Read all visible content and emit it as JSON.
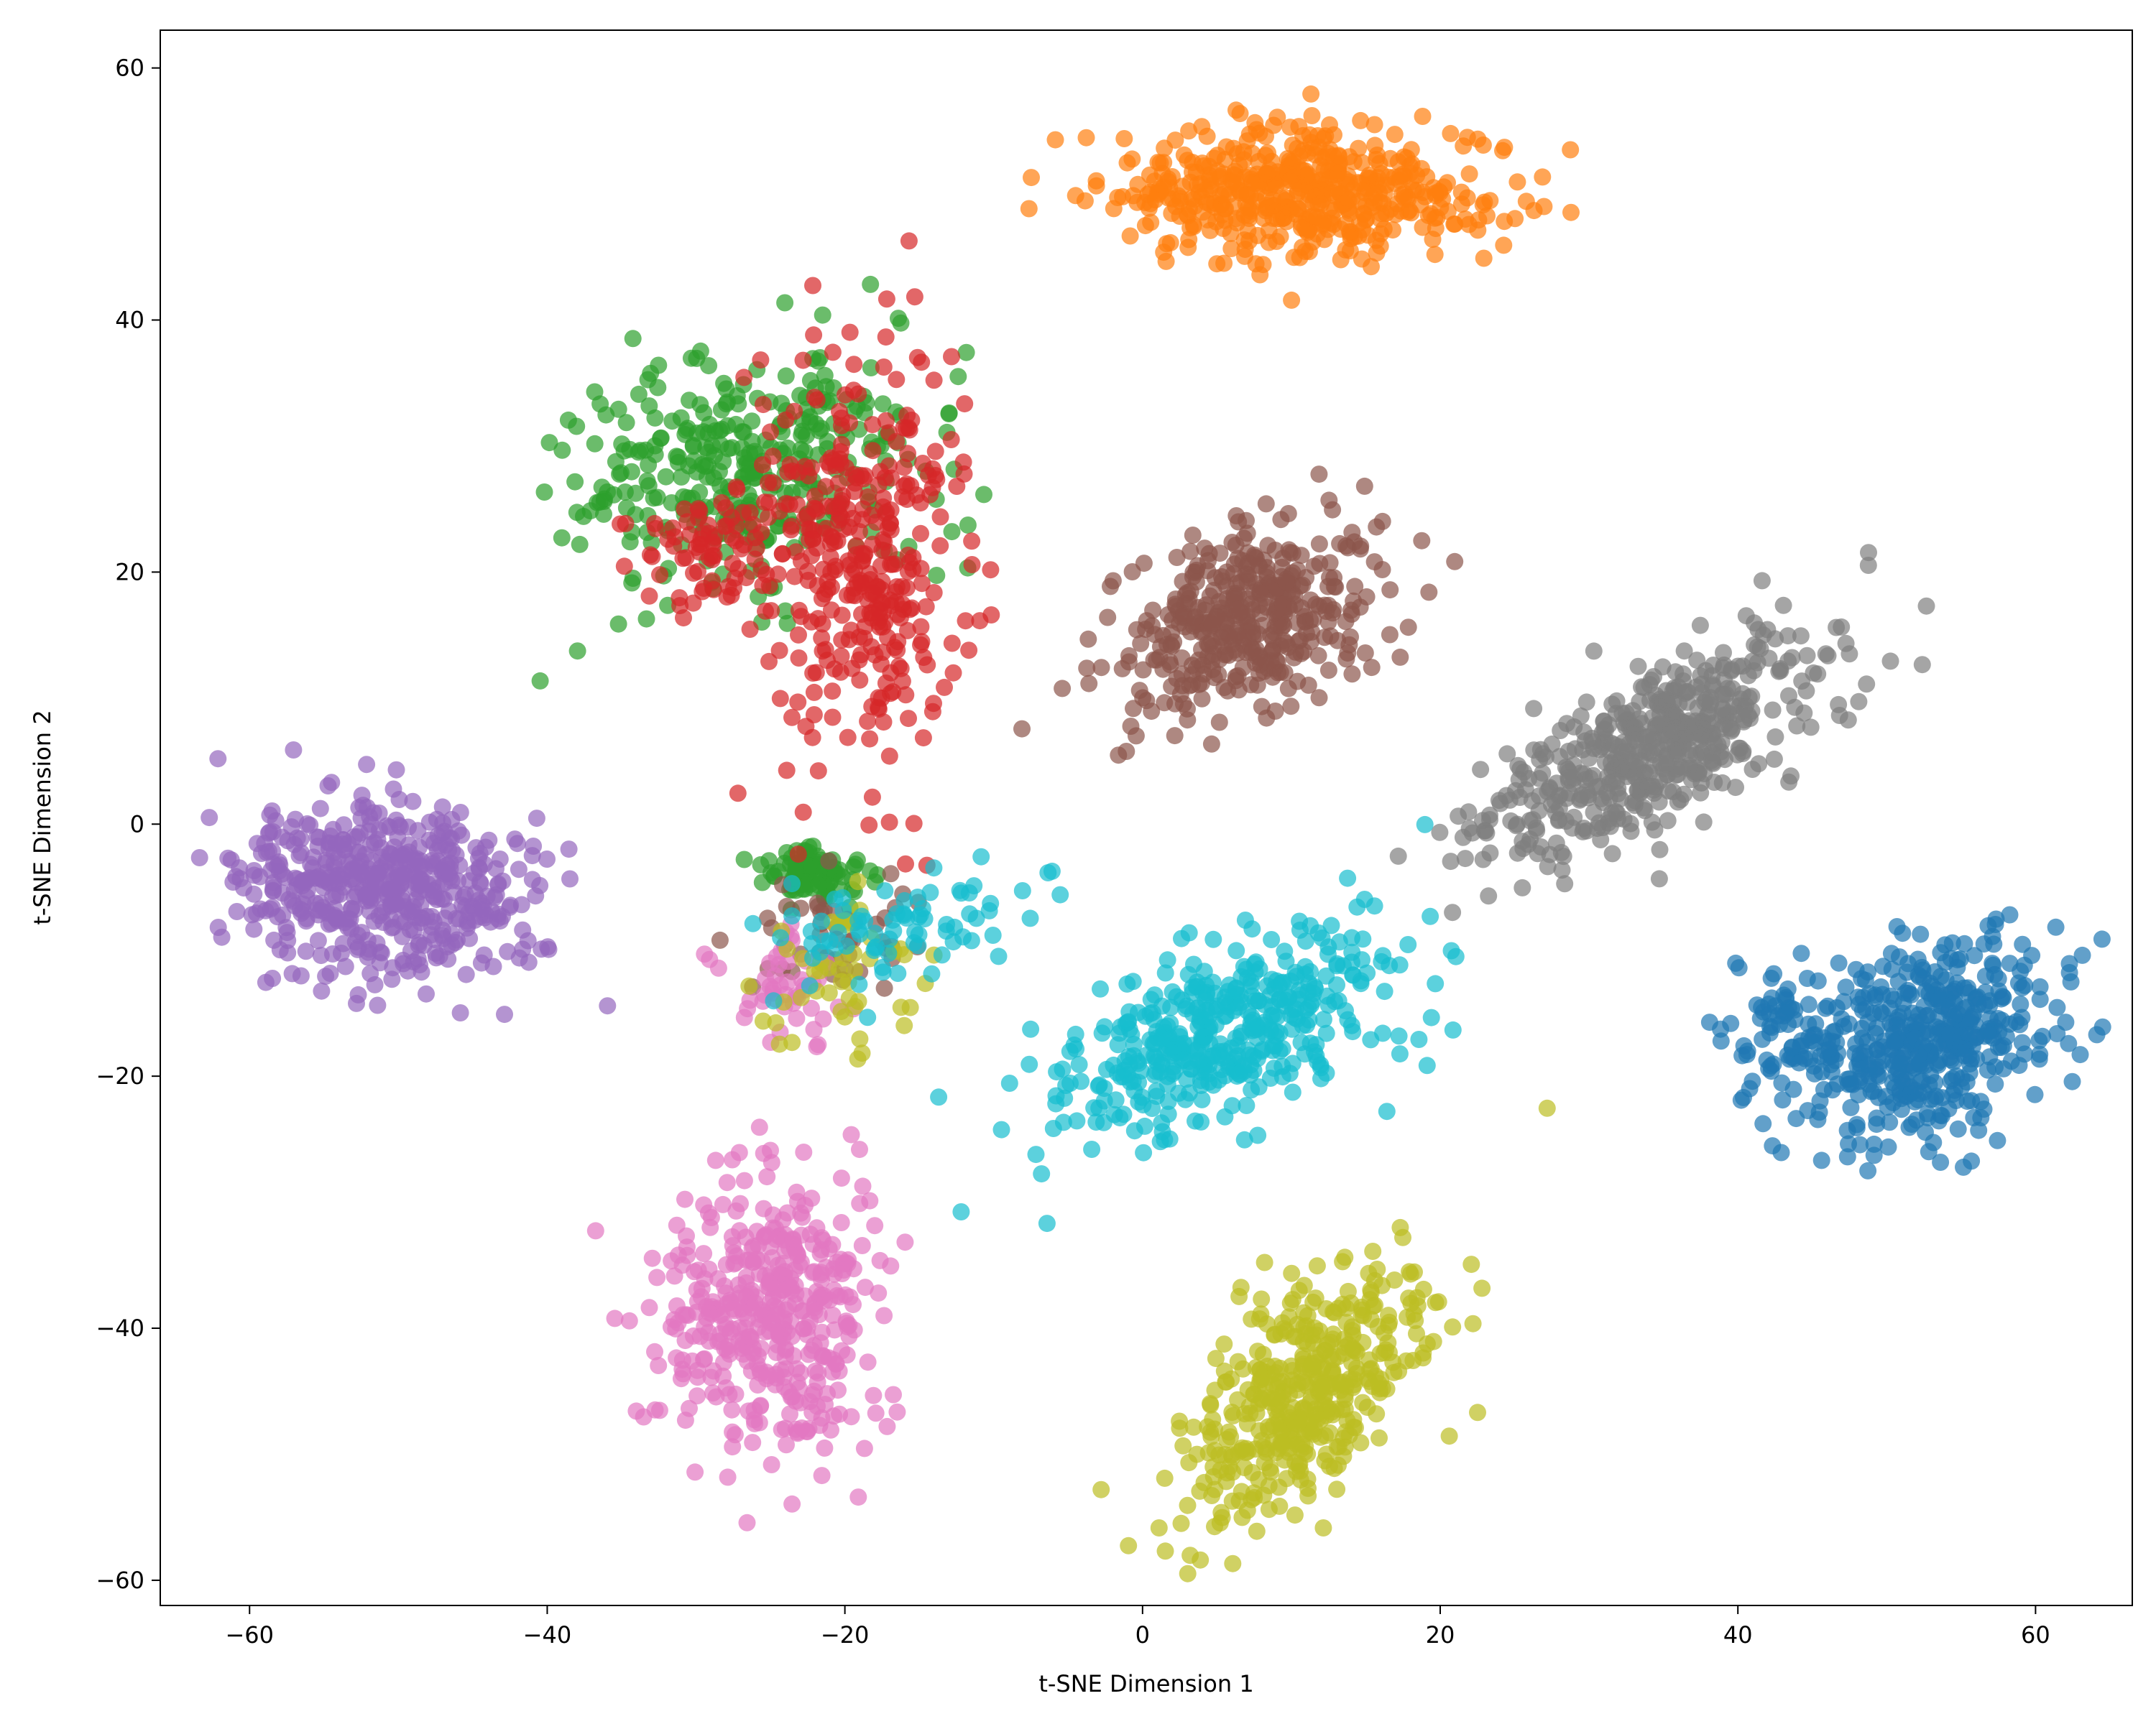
{
  "chart_data": {
    "type": "scatter",
    "title": "",
    "xlabel": "t-SNE Dimension 1",
    "ylabel": "t-SNE Dimension 2",
    "xlim": [
      -66,
      66.5
    ],
    "ylim": [
      -62,
      63
    ],
    "xticks": [
      -60,
      -40,
      -20,
      0,
      20,
      40,
      60
    ],
    "yticks": [
      -60,
      -40,
      -20,
      0,
      20,
      40,
      60
    ],
    "xtick_labels": [
      "−60",
      "−40",
      "−20",
      "0",
      "20",
      "40",
      "60"
    ],
    "ytick_labels": [
      "−60",
      "−40",
      "−20",
      "0",
      "20",
      "40",
      "60"
    ],
    "grid": false,
    "legend": "none",
    "point_alpha": 0.7,
    "seed": 7,
    "series": [
      {
        "color": "#1f77b4",
        "count": 520,
        "clusters": [
          {
            "center": [
              53,
              -17
            ],
            "spread": [
              4.5,
              3.5
            ],
            "angle": 30,
            "weight": 0.85
          },
          {
            "center": [
              43,
              -17
            ],
            "spread": [
              2.0,
              3.5
            ],
            "angle": 0,
            "weight": 0.15
          }
        ]
      },
      {
        "color": "#ff7f0e",
        "count": 520,
        "clusters": [
          {
            "center": [
              11,
              50
            ],
            "spread": [
              6.5,
              2.6
            ],
            "angle": 0,
            "weight": 1.0
          }
        ]
      },
      {
        "color": "#2ca02c",
        "count": 430,
        "clusters": [
          {
            "center": [
              -27,
              28
            ],
            "spread": [
              6.5,
              4.5
            ],
            "angle": 20,
            "weight": 0.8
          },
          {
            "center": [
              -22,
              -4
            ],
            "spread": [
              2.0,
              1.0
            ],
            "angle": 0,
            "weight": 0.2
          }
        ]
      },
      {
        "color": "#d62728",
        "count": 430,
        "clusters": [
          {
            "center": [
              -19,
              22
            ],
            "spread": [
              3.5,
              8.0
            ],
            "angle": 0,
            "weight": 0.8
          },
          {
            "center": [
              -28,
              22
            ],
            "spread": [
              3.0,
              2.5
            ],
            "angle": 0,
            "weight": 0.2
          }
        ]
      },
      {
        "color": "#9467bd",
        "count": 520,
        "clusters": [
          {
            "center": [
              -51,
              -5
            ],
            "spread": [
              5.0,
              3.5
            ],
            "angle": -10,
            "weight": 1.0
          }
        ]
      },
      {
        "color": "#8c564b",
        "count": 460,
        "clusters": [
          {
            "center": [
              7,
              16
            ],
            "spread": [
              5.0,
              3.2
            ],
            "angle": 35,
            "weight": 0.9
          },
          {
            "center": [
              -22,
              -8
            ],
            "spread": [
              3.0,
              2.5
            ],
            "angle": 0,
            "weight": 0.1
          }
        ]
      },
      {
        "color": "#e377c2",
        "count": 480,
        "clusters": [
          {
            "center": [
              -25,
              -39
            ],
            "spread": [
              3.5,
              5.5
            ],
            "angle": 0,
            "weight": 0.9
          },
          {
            "center": [
              -24,
              -13
            ],
            "spread": [
              2.0,
              2.0
            ],
            "angle": 0,
            "weight": 0.1
          }
        ]
      },
      {
        "color": "#7f7f7f",
        "count": 520,
        "clusters": [
          {
            "center": [
              34,
              6
            ],
            "spread": [
              7.0,
              2.6
            ],
            "angle": 38,
            "weight": 1.0
          }
        ]
      },
      {
        "color": "#bcbd22",
        "count": 480,
        "clusters": [
          {
            "center": [
              11,
              -45
            ],
            "spread": [
              6.0,
              3.0
            ],
            "angle": 55,
            "weight": 0.9
          },
          {
            "center": [
              -20,
              -12
            ],
            "spread": [
              3.0,
              2.5
            ],
            "angle": 0,
            "weight": 0.1
          }
        ]
      },
      {
        "color": "#17becf",
        "count": 520,
        "clusters": [
          {
            "center": [
              6,
              -16
            ],
            "spread": [
              6.5,
              3.2
            ],
            "angle": 28,
            "weight": 0.85
          },
          {
            "center": [
              -16,
              -8
            ],
            "spread": [
              5.0,
              2.0
            ],
            "angle": 15,
            "weight": 0.15
          }
        ]
      }
    ]
  }
}
